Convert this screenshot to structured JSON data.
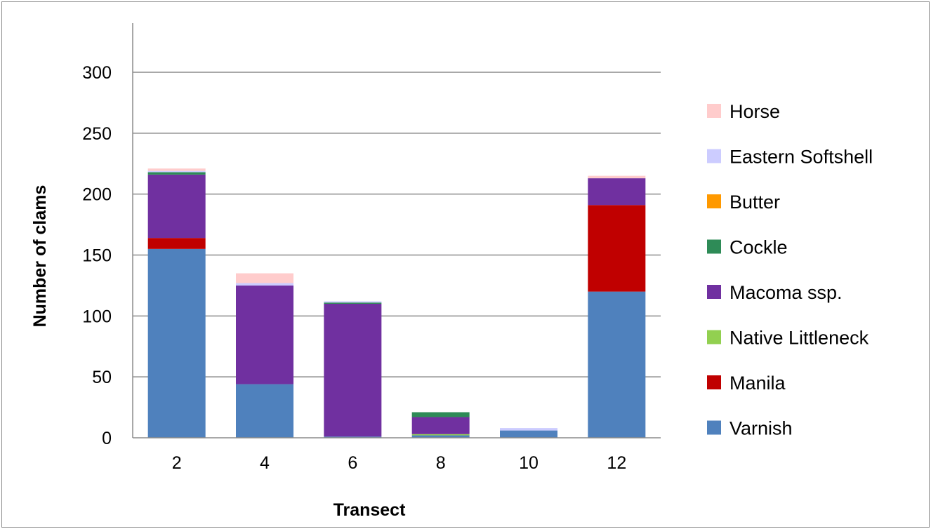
{
  "chart_data": {
    "type": "bar",
    "stacked": true,
    "title": "",
    "xlabel": "Transect",
    "ylabel": "Number of clams",
    "ylim": [
      0,
      300
    ],
    "yticks": [
      0,
      50,
      100,
      150,
      200,
      250,
      300
    ],
    "grid": true,
    "legend_position": "right",
    "categories": [
      "2",
      "4",
      "6",
      "8",
      "10",
      "12"
    ],
    "series": [
      {
        "name": "Varnish",
        "color": "#4f81bd",
        "values": [
          155,
          44,
          1,
          2,
          6,
          120
        ]
      },
      {
        "name": "Manila",
        "color": "#c00000",
        "values": [
          9,
          0,
          0,
          0,
          0,
          71
        ]
      },
      {
        "name": "Native Littleneck",
        "color": "#92d050",
        "values": [
          0,
          0,
          0,
          1,
          0,
          0
        ]
      },
      {
        "name": "Macoma ssp.",
        "color": "#7030a0",
        "values": [
          52,
          81,
          109,
          14,
          0,
          22
        ]
      },
      {
        "name": "Cockle",
        "color": "#2e8b57",
        "values": [
          2,
          0,
          1,
          4,
          0,
          0
        ]
      },
      {
        "name": "Butter",
        "color": "#ff9900",
        "values": [
          0,
          0,
          0,
          0,
          0,
          0
        ]
      },
      {
        "name": "Eastern Softshell",
        "color": "#ccccff",
        "values": [
          1,
          2,
          1,
          0,
          2,
          0
        ]
      },
      {
        "name": "Horse",
        "color": "#ffcccc",
        "values": [
          2,
          8,
          0,
          0,
          0,
          2
        ]
      }
    ]
  }
}
